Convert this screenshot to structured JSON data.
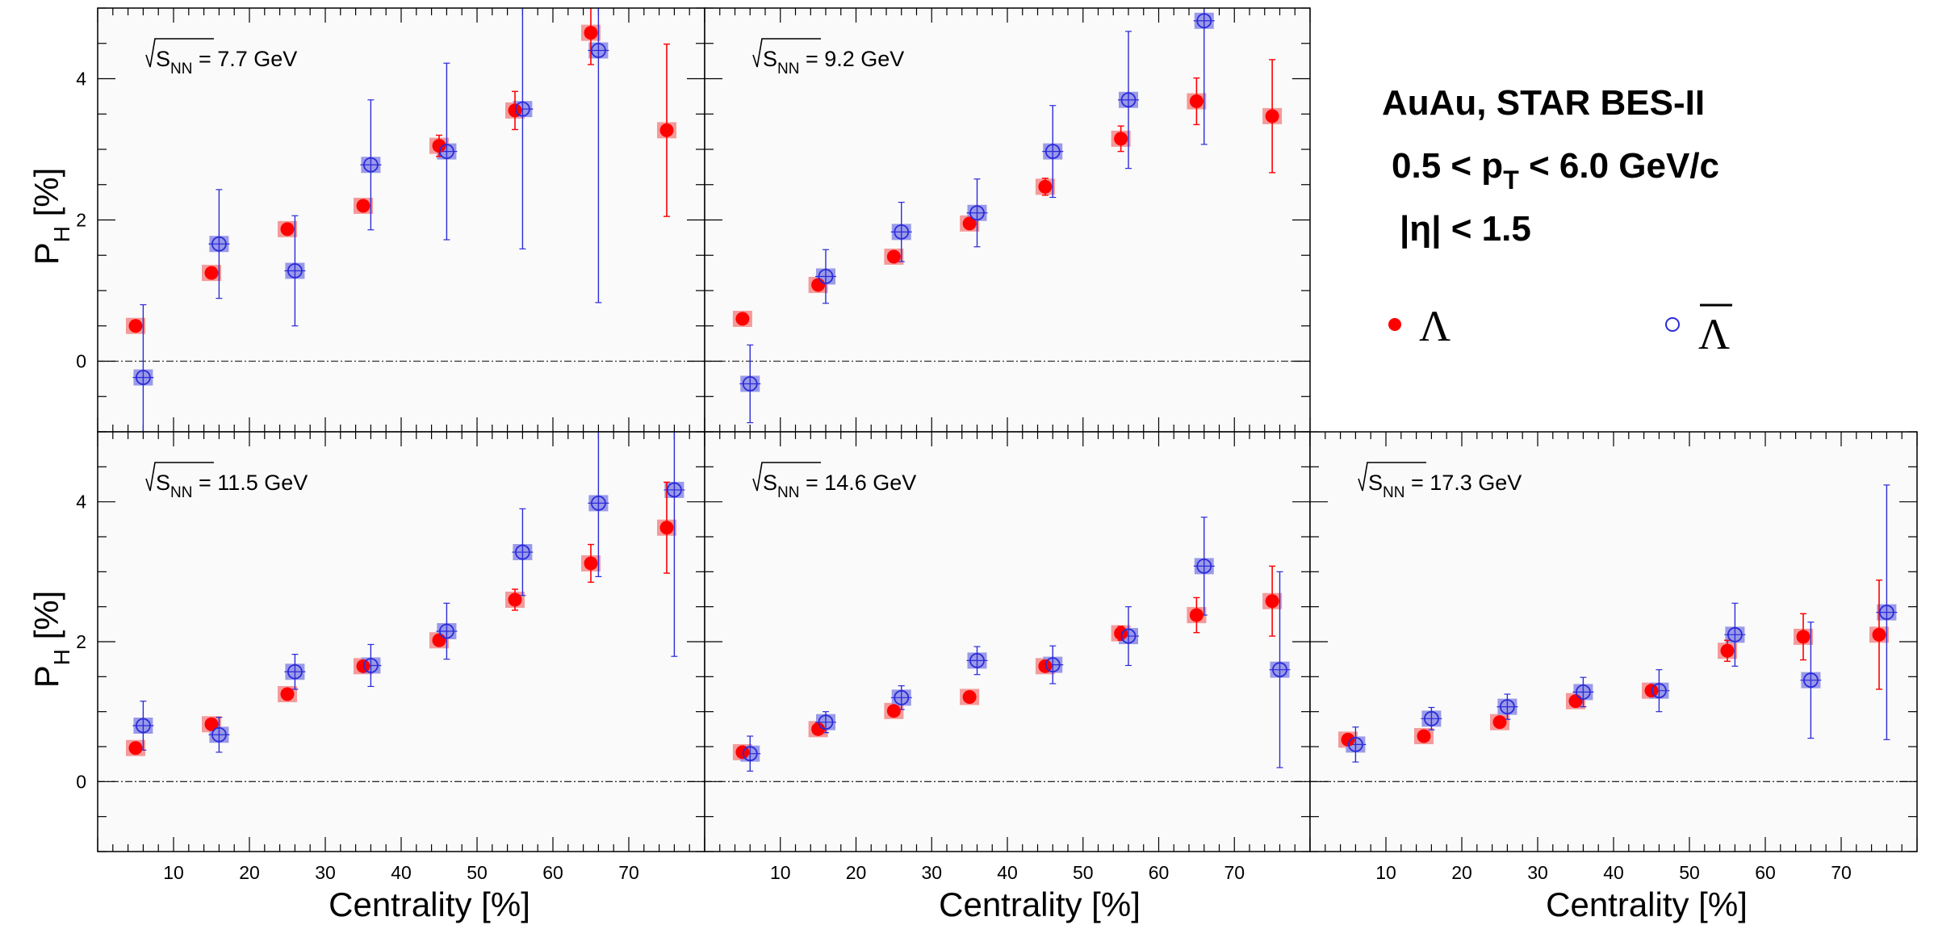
{
  "colors": {
    "lambda": "#ff0000",
    "lambda_box": "#f59a9a",
    "antilambda": "#2b2bd9",
    "antilambda_box": "#9a9ae8",
    "frame_bg": "#fafafa"
  },
  "legend": {
    "info_line1": "AuAu, STAR BES-II",
    "info_line2_pre": "0.5 < p",
    "info_line2_sub": "T",
    "info_line2_post": " < 6.0 GeV/c",
    "info_line3": "|η| < 1.5",
    "lambda_label": "Λ",
    "antilambda_label": "Λ"
  },
  "axes": {
    "ylabel_main": "P",
    "ylabel_sub": "H",
    "ylabel_unit": " [%]",
    "xlabel": "Centrality [%]",
    "energy_prefix_main": "S",
    "energy_prefix_sub": "NN"
  },
  "chart_data": [
    {
      "type": "scatter",
      "energy_label": " = 7.7 GeV",
      "xlabel": "Centrality [%]",
      "ylabel": "P_H [%]",
      "xlim": [
        0,
        80
      ],
      "ylim": [
        -1,
        5
      ],
      "xticks": [
        "10",
        "20",
        "30",
        "40",
        "50",
        "60",
        "70"
      ],
      "yticks": [
        "0",
        "2",
        "4"
      ],
      "series": [
        {
          "name": "Λ",
          "x": [
            5,
            15,
            25,
            35,
            45,
            55,
            65,
            75
          ],
          "y": [
            0.5,
            1.25,
            1.87,
            2.2,
            3.05,
            3.55,
            4.65,
            3.27
          ],
          "err": [
            0.0,
            0.0,
            0.0,
            0.0,
            0.15,
            0.27,
            0.45,
            1.22
          ]
        },
        {
          "name": "Λ̄",
          "x": [
            6,
            16,
            26,
            36,
            46,
            56,
            66
          ],
          "y": [
            -0.23,
            1.66,
            1.28,
            2.78,
            2.97,
            3.57,
            4.4
          ],
          "err": [
            1.03,
            0.77,
            0.78,
            0.92,
            1.25,
            1.98,
            3.57
          ]
        }
      ]
    },
    {
      "type": "scatter",
      "energy_label": " = 9.2 GeV",
      "xlabel": "Centrality [%]",
      "ylabel": "P_H [%]",
      "xlim": [
        0,
        80
      ],
      "ylim": [
        -1,
        5
      ],
      "xticks": [
        "10",
        "20",
        "30",
        "40",
        "50",
        "60",
        "70"
      ],
      "yticks": [
        "0",
        "2",
        "4"
      ],
      "series": [
        {
          "name": "Λ",
          "x": [
            5,
            15,
            25,
            35,
            45,
            55,
            65,
            75
          ],
          "y": [
            0.6,
            1.08,
            1.48,
            1.95,
            2.47,
            3.15,
            3.68,
            3.47
          ],
          "err": [
            0.0,
            0.0,
            0.0,
            0.0,
            0.12,
            0.18,
            0.33,
            0.8
          ]
        },
        {
          "name": "Λ̄",
          "x": [
            6,
            16,
            26,
            36,
            46,
            56,
            66
          ],
          "y": [
            -0.32,
            1.2,
            1.83,
            2.1,
            2.97,
            3.7,
            4.82
          ],
          "err": [
            0.55,
            0.38,
            0.42,
            0.48,
            0.65,
            0.97,
            1.75
          ]
        }
      ]
    },
    {
      "type": "scatter",
      "energy_label": " = 11.5 GeV",
      "xlabel": "Centrality [%]",
      "ylabel": "P_H [%]",
      "xlim": [
        0,
        80
      ],
      "ylim": [
        -1,
        5
      ],
      "xticks": [
        "10",
        "20",
        "30",
        "40",
        "50",
        "60",
        "70"
      ],
      "yticks": [
        "0",
        "2",
        "4"
      ],
      "series": [
        {
          "name": "Λ",
          "x": [
            5,
            15,
            25,
            35,
            45,
            55,
            65,
            75
          ],
          "y": [
            0.48,
            0.82,
            1.25,
            1.65,
            2.02,
            2.6,
            3.12,
            3.63
          ],
          "err": [
            0.0,
            0.0,
            0.0,
            0.0,
            0.0,
            0.15,
            0.27,
            0.65
          ]
        },
        {
          "name": "Λ̄",
          "x": [
            6,
            16,
            26,
            36,
            46,
            56,
            66,
            76
          ],
          "y": [
            0.8,
            0.67,
            1.57,
            1.66,
            2.15,
            3.28,
            3.98,
            4.17
          ],
          "err": [
            0.35,
            0.25,
            0.25,
            0.3,
            0.4,
            0.62,
            1.05,
            2.38
          ]
        }
      ]
    },
    {
      "type": "scatter",
      "energy_label": " = 14.6 GeV",
      "xlabel": "Centrality [%]",
      "ylabel": "P_H [%]",
      "xlim": [
        0,
        80
      ],
      "ylim": [
        -1,
        5
      ],
      "xticks": [
        "10",
        "20",
        "30",
        "40",
        "50",
        "60",
        "70"
      ],
      "yticks": [
        "0",
        "2",
        "4"
      ],
      "series": [
        {
          "name": "Λ",
          "x": [
            5,
            15,
            25,
            35,
            45,
            55,
            65,
            75
          ],
          "y": [
            0.42,
            0.75,
            1.01,
            1.21,
            1.65,
            2.12,
            2.38,
            2.58
          ],
          "err": [
            0.0,
            0.0,
            0.0,
            0.0,
            0.0,
            0.1,
            0.25,
            0.5
          ]
        },
        {
          "name": "Λ̄",
          "x": [
            6,
            16,
            26,
            36,
            46,
            56,
            66,
            76
          ],
          "y": [
            0.4,
            0.85,
            1.2,
            1.73,
            1.67,
            2.08,
            3.08,
            1.6
          ],
          "err": [
            0.25,
            0.15,
            0.17,
            0.2,
            0.27,
            0.42,
            0.7,
            1.4
          ]
        }
      ]
    },
    {
      "type": "scatter",
      "energy_label": " = 17.3 GeV",
      "xlabel": "Centrality [%]",
      "ylabel": "P_H [%]",
      "xlim": [
        0,
        80
      ],
      "ylim": [
        -1,
        5
      ],
      "xticks": [
        "10",
        "20",
        "30",
        "40",
        "50",
        "60",
        "70"
      ],
      "yticks": [
        "0",
        "2",
        "4"
      ],
      "series": [
        {
          "name": "Λ",
          "x": [
            5,
            15,
            25,
            35,
            45,
            55,
            65,
            75
          ],
          "y": [
            0.6,
            0.65,
            0.85,
            1.15,
            1.3,
            1.87,
            2.07,
            2.1
          ],
          "err": [
            0.0,
            0.0,
            0.0,
            0.0,
            0.0,
            0.15,
            0.33,
            0.78
          ]
        },
        {
          "name": "Λ̄",
          "x": [
            6,
            16,
            26,
            36,
            46,
            56,
            66,
            76
          ],
          "y": [
            0.53,
            0.9,
            1.07,
            1.28,
            1.3,
            2.1,
            1.45,
            2.42
          ],
          "err": [
            0.25,
            0.16,
            0.18,
            0.21,
            0.3,
            0.45,
            0.83,
            1.82
          ]
        }
      ]
    }
  ]
}
